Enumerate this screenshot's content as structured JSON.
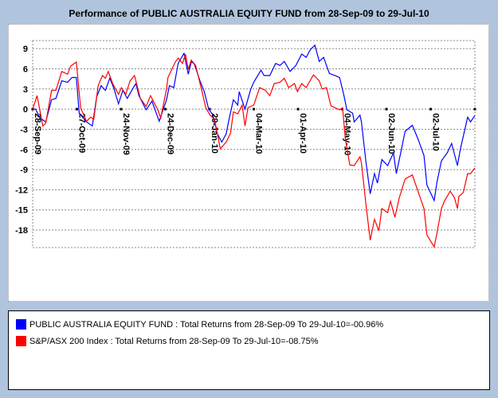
{
  "title": "Performance of PUBLIC AUSTRALIA EQUITY FUND from 28-Sep-09 to 29-Jul-10",
  "legend": [
    {
      "label": "PUBLIC AUSTRALIA EQUITY FUND : Total Returns from 28-Sep-09 To 29-Jul-10=-00.96%",
      "color": "#0000ff"
    },
    {
      "label": "S&P/ASX 200 Index : Total Returns from 28-Sep-09 To 29-Jul-10=-08.75%",
      "color": "#ff0000"
    }
  ],
  "chart_data": {
    "type": "line",
    "title": "Performance of PUBLIC AUSTRALIA EQUITY FUND from 28-Sep-09 to 29-Jul-10",
    "xlabel": "",
    "ylabel": "",
    "xlim": [
      0,
      304
    ],
    "ylim": [
      -20.6,
      10.2
    ],
    "yticks": [
      9,
      6,
      3,
      0,
      -3,
      -6,
      -9,
      -12,
      -15,
      -18
    ],
    "xtick_labels": [
      "28-Sep-09",
      "27-Oct-09",
      "24-Nov-09",
      "24-Dec-09",
      "29-Jan-10",
      "04-Mar-10",
      "01-Apr-10",
      "04-May-10",
      "02-Jun-10",
      "02-Jul-10"
    ],
    "grid": true,
    "legend_position": "bottom",
    "series": [
      {
        "name": "PUBLIC AUSTRALIA EQUITY FUND",
        "color": "#0000ff",
        "x": [
          0,
          2,
          5,
          9,
          13,
          16,
          20,
          24,
          27,
          30,
          32,
          37,
          41,
          44,
          47,
          50,
          53,
          56,
          59,
          62,
          65,
          70,
          71,
          73,
          78,
          82,
          87,
          92,
          94,
          97,
          100,
          104,
          107,
          109,
          111,
          115,
          118,
          121,
          124,
          127,
          130,
          133,
          135,
          138,
          141,
          142,
          146,
          150,
          152,
          157,
          159,
          163,
          167,
          170,
          173,
          177,
          181,
          185,
          188,
          191,
          194,
          197,
          200,
          204,
          208,
          211,
          214,
          216,
          220,
          221,
          225,
          226,
          229,
          232,
          235,
          237,
          240,
          244,
          248,
          250,
          253,
          256,
          261,
          265,
          269,
          271,
          276,
          278,
          281,
          285,
          288,
          292,
          294,
          299,
          301,
          304
        ],
        "y": [
          0,
          0,
          -1.3,
          -1.9,
          1.4,
          1.6,
          4.2,
          4.0,
          4.7,
          4.7,
          -0.6,
          -1.9,
          -2.5,
          1.8,
          3.5,
          2.8,
          4.6,
          3.0,
          0.8,
          2.8,
          1.6,
          3.5,
          3.8,
          2.0,
          -0.1,
          1.2,
          -1.8,
          1.4,
          3.5,
          3.2,
          6.8,
          8.3,
          5.2,
          7.0,
          6.8,
          4.2,
          2.6,
          0,
          -0.9,
          -3.7,
          -4.9,
          -3.7,
          -1.5,
          1.4,
          0.6,
          2.6,
          0.0,
          3.0,
          4.0,
          5.8,
          5.0,
          5.0,
          6.8,
          6.5,
          7.1,
          5.6,
          6.5,
          8.2,
          7.7,
          8.9,
          9.5,
          7.1,
          7.7,
          5.3,
          5.0,
          4.7,
          2.0,
          -0.1,
          -0.6,
          -1.9,
          -0.9,
          -1.9,
          -7.7,
          -12.6,
          -9.6,
          -11.0,
          -7.5,
          -8.4,
          -6.5,
          -9.6,
          -6.5,
          -3.3,
          -2.4,
          -4.5,
          -6.9,
          -11.3,
          -13.6,
          -10.8,
          -7.7,
          -6.5,
          -5.1,
          -8.4,
          -6.0,
          -1.2,
          -1.9,
          -0.96
        ]
      },
      {
        "name": "S&P/ASX 200 Index",
        "color": "#ff0000",
        "x": [
          0,
          3,
          7,
          9,
          13,
          16,
          20,
          24,
          26,
          30,
          33,
          37,
          40,
          42,
          45,
          48,
          50,
          52,
          55,
          59,
          61,
          64,
          67,
          70,
          74,
          78,
          81,
          86,
          88,
          92,
          93,
          98,
          100,
          103,
          105,
          107,
          109,
          112,
          116,
          119,
          122,
          125,
          129,
          133,
          136,
          138,
          141,
          144,
          146,
          148,
          152,
          156,
          160,
          163,
          166,
          170,
          173,
          176,
          180,
          182,
          185,
          188,
          193,
          197,
          199,
          202,
          205,
          208,
          211,
          213,
          215,
          218,
          221,
          225,
          226,
          229,
          232,
          235,
          238,
          240,
          244,
          246,
          249,
          252,
          256,
          261,
          269,
          271,
          276,
          278,
          281,
          283,
          287,
          290,
          292,
          293,
          296,
          299,
          301,
          304
        ],
        "y": [
          0,
          2.0,
          -2.5,
          -2.1,
          2.8,
          2.8,
          5.6,
          5.2,
          6.4,
          7.0,
          0.2,
          -1.8,
          -1.2,
          -1.5,
          3.5,
          5.0,
          4.6,
          5.6,
          3.8,
          2.2,
          3.2,
          2.2,
          4.2,
          5.0,
          1.6,
          0.4,
          2.0,
          -0.1,
          -1.3,
          3.0,
          4.7,
          7.0,
          7.6,
          6.8,
          8.2,
          5.9,
          7.3,
          6.5,
          3.0,
          0.2,
          -0.9,
          -1.5,
          -5.9,
          -4.9,
          -3.6,
          -0.4,
          -0.7,
          0.6,
          -2.5,
          0.2,
          0.6,
          3.2,
          2.8,
          2.0,
          3.8,
          4.0,
          4.6,
          3.2,
          3.8,
          2.6,
          3.8,
          3.2,
          5.1,
          4.2,
          3.0,
          3.2,
          0.5,
          0.2,
          -0.1,
          0.2,
          -4.5,
          -8.3,
          -8.4,
          -7.1,
          -8.0,
          -14.0,
          -19.5,
          -16.4,
          -18.1,
          -14.8,
          -15.4,
          -13.7,
          -16.1,
          -13.2,
          -10.4,
          -9.8,
          -14.8,
          -18.7,
          -20.5,
          -18.4,
          -14.8,
          -13.7,
          -12.2,
          -13.2,
          -14.8,
          -13.0,
          -12.4,
          -9.6,
          -9.6,
          -8.75
        ]
      }
    ]
  }
}
